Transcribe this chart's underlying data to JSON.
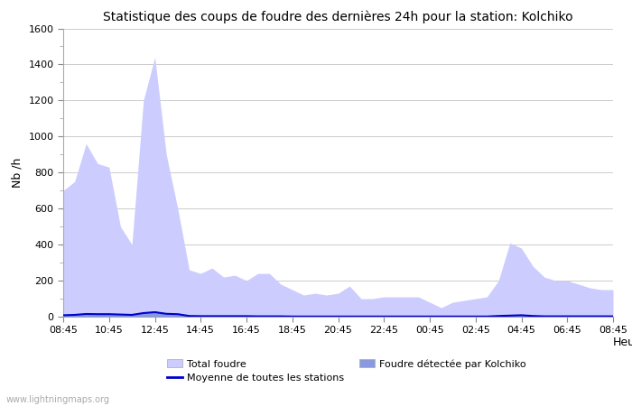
{
  "title": "Statistique des coups de foudre des dernières 24h pour la station: Kolchiko",
  "ylabel": "Nb /h",
  "xlabel_right": "Heure",
  "watermark": "www.lightningmaps.org",
  "ylim": [
    0,
    1600
  ],
  "yticks": [
    0,
    200,
    400,
    600,
    800,
    1000,
    1200,
    1400,
    1600
  ],
  "xtick_labels": [
    "08:45",
    "10:45",
    "12:45",
    "14:45",
    "16:45",
    "18:45",
    "20:45",
    "22:45",
    "00:45",
    "02:45",
    "04:45",
    "06:45",
    "08:45"
  ],
  "legend_total": "Total foudre",
  "legend_kolchiko": "Foudre détectée par Kolchiko",
  "legend_moyenne": "Moyenne de toutes les stations",
  "color_total": "#ccccff",
  "color_kolchiko": "#8899dd",
  "color_moyenne": "#0000cc",
  "bg_color": "#ffffff",
  "grid_color": "#cccccc",
  "total_foudre": [
    700,
    750,
    960,
    850,
    830,
    500,
    400,
    1200,
    1440,
    900,
    600,
    260,
    240,
    270,
    220,
    230,
    200,
    240,
    240,
    180,
    150,
    120,
    130,
    120,
    130,
    170,
    100,
    100,
    110,
    110,
    110,
    110,
    80,
    50,
    80,
    90,
    100,
    110,
    200,
    410,
    380,
    280,
    220,
    200,
    200,
    180,
    160,
    150,
    150
  ],
  "kolchiko_foudre": [
    10,
    12,
    20,
    18,
    18,
    15,
    12,
    25,
    30,
    20,
    18,
    5,
    5,
    5,
    4,
    4,
    4,
    3,
    3,
    3,
    2,
    2,
    2,
    2,
    2,
    2,
    1,
    1,
    1,
    1,
    1,
    1,
    1,
    1,
    1,
    1,
    1,
    1,
    5,
    8,
    10,
    5,
    3,
    3,
    3,
    3,
    3,
    3,
    3
  ],
  "moyenne_foudre": [
    8,
    10,
    15,
    14,
    14,
    12,
    10,
    20,
    25,
    16,
    14,
    4,
    3,
    3,
    3,
    3,
    3,
    2,
    2,
    2,
    1,
    1,
    1,
    1,
    1,
    1,
    1,
    1,
    1,
    1,
    1,
    1,
    1,
    1,
    1,
    1,
    1,
    1,
    4,
    6,
    8,
    4,
    2,
    2,
    2,
    2,
    2,
    2,
    2
  ]
}
